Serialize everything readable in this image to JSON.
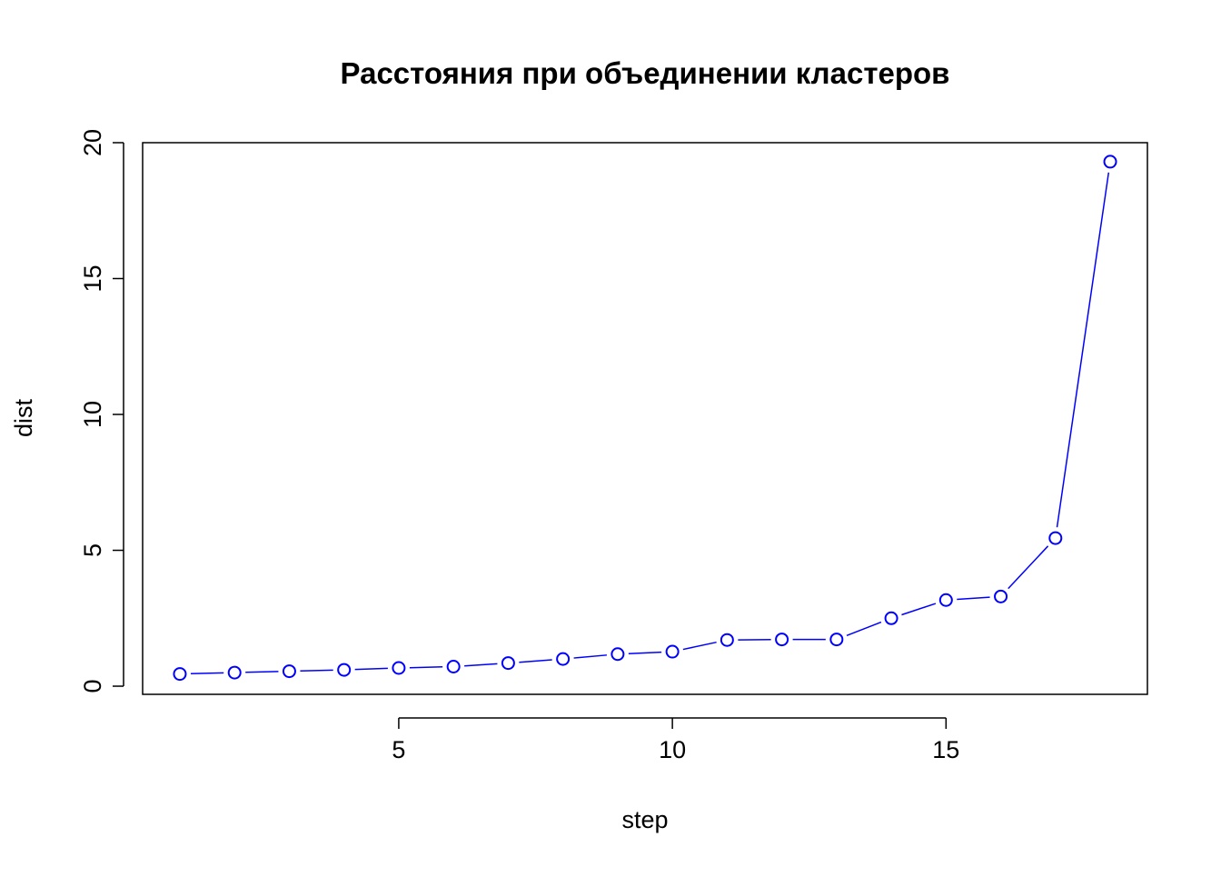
{
  "chart_data": {
    "type": "line",
    "title": "Расстояния при объединении кластеров",
    "xlabel": "step",
    "ylabel": "dist",
    "xlim": [
      0.32,
      18.68
    ],
    "ylim": [
      -0.3,
      20.0
    ],
    "x_ticks": [
      5,
      10,
      15
    ],
    "y_ticks": [
      0,
      5,
      10,
      15,
      20
    ],
    "grid": false,
    "legend": "none",
    "series_color": "#0000ff",
    "marker": "open-circle",
    "series": [
      {
        "x": [
          1,
          2,
          3,
          4,
          5,
          6,
          7,
          8,
          9,
          10,
          11,
          12,
          13,
          14,
          15,
          16,
          17,
          18
        ],
        "values": [
          0.45,
          0.5,
          0.55,
          0.6,
          0.67,
          0.72,
          0.85,
          1.0,
          1.18,
          1.27,
          1.7,
          1.72,
          1.72,
          2.5,
          3.17,
          3.3,
          5.45,
          19.3
        ]
      }
    ]
  }
}
